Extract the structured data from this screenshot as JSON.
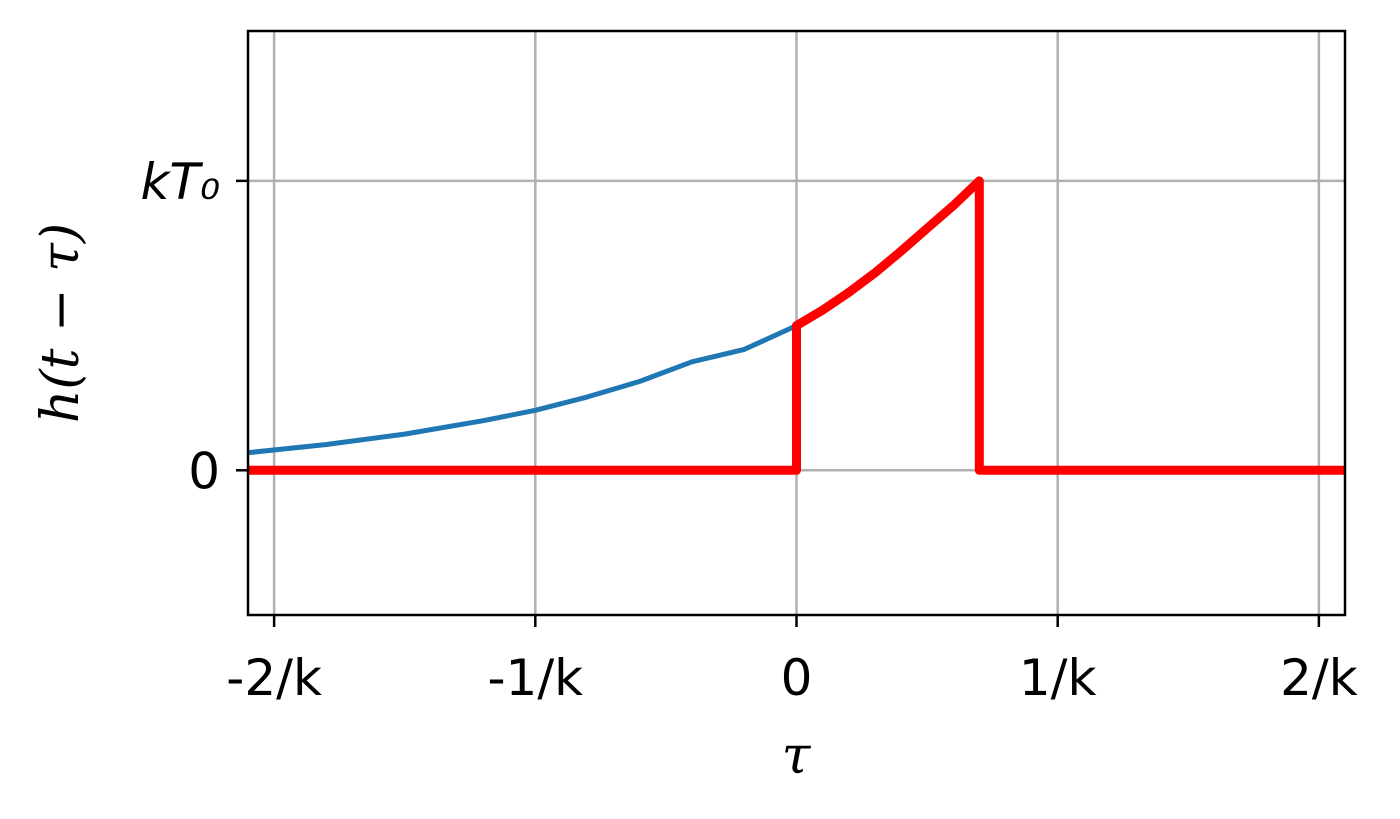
{
  "chart_data": {
    "type": "line",
    "xlabel": "τ",
    "ylabel": "h(t − τ)",
    "xlim": [
      -2.1,
      2.1
    ],
    "ylim": [
      -1.4,
      4.25
    ],
    "grid": true,
    "x_ticks": [
      {
        "value": -2,
        "label": "-2/k"
      },
      {
        "value": -1,
        "label": "-1/k"
      },
      {
        "value": 0,
        "label": "0"
      },
      {
        "value": 1,
        "label": "1/k"
      },
      {
        "value": 2,
        "label": "2/k"
      }
    ],
    "y_ticks": [
      {
        "value": 0,
        "label": "0",
        "italic": false
      },
      {
        "value": 2.8,
        "label": "kT₀",
        "italic": true
      }
    ],
    "series": [
      {
        "color": "#1f77b4",
        "line_width": 5,
        "x": [
          -2.1,
          -1.8,
          -1.5,
          -1.2,
          -1.0,
          -0.8,
          -0.6,
          -0.4,
          -0.2,
          0.0
        ],
        "y": [
          0.17,
          0.25,
          0.35,
          0.48,
          0.58,
          0.71,
          0.86,
          1.05,
          1.17,
          1.4
        ]
      },
      {
        "color": "#ff0000",
        "line_width": 9,
        "x": [
          -2.1,
          0.0,
          0.0,
          0.1,
          0.2,
          0.3,
          0.4,
          0.5,
          0.6,
          0.7,
          0.7,
          2.1
        ],
        "y": [
          0.0,
          0.0,
          1.4,
          1.55,
          1.72,
          1.91,
          2.12,
          2.34,
          2.56,
          2.8,
          0.0,
          0.0
        ]
      }
    ]
  }
}
